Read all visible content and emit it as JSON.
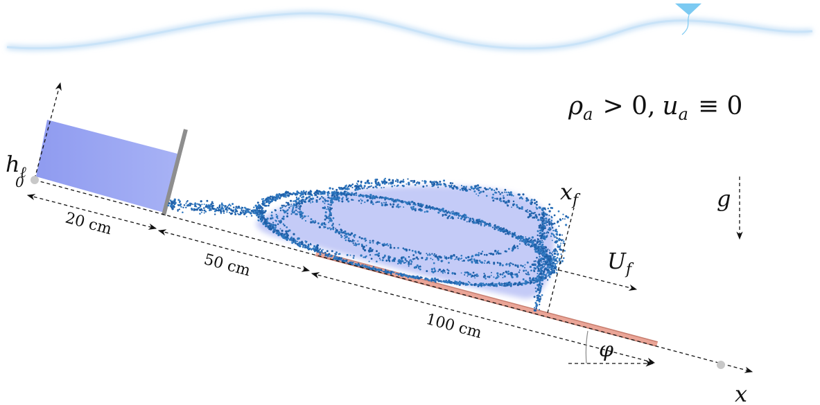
{
  "labels": {
    "ambient": {
      "rho": "ρ",
      "rho_sub": "a",
      "relation1": "> 0,",
      "u": "u",
      "u_sub": "a",
      "relation2": "≡ 0"
    },
    "height": {
      "symbol": "h",
      "subscript": "ℓ"
    },
    "origin": "0",
    "segment1": "20 cm",
    "segment2": "50 cm",
    "segment3": "100 cm",
    "front_position": {
      "symbol": "x",
      "subscript": "f"
    },
    "front_velocity": {
      "symbol": "U",
      "subscript": "f"
    },
    "gravity": "g",
    "angle": "φ",
    "axis": "x"
  }
}
